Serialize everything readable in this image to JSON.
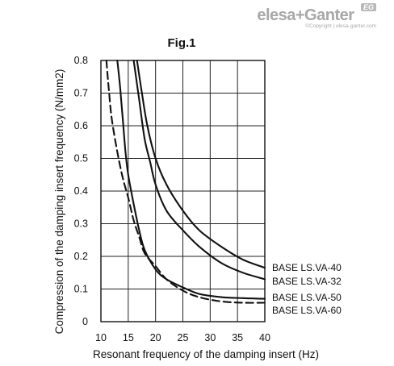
{
  "brand": {
    "name": "elesa+Ganter",
    "mark": "EG",
    "copyright": "©Copyright | elesa-ganter.com"
  },
  "chart_data": {
    "type": "line",
    "title": "Fig.1",
    "xlabel": "Resonant frequency of the damping insert (Hz)",
    "ylabel": "Compression of the damping insert frequency (N/mm2)",
    "xlim": [
      10,
      40
    ],
    "ylim": [
      0,
      0.8
    ],
    "xticks": [
      "10",
      "15",
      "20",
      "25",
      "30",
      "35",
      "40"
    ],
    "yticks": [
      "0",
      "0.1",
      "0.2",
      "0.3",
      "0.4",
      "0.5",
      "0.6",
      "0.7",
      "0.8"
    ],
    "grid": true,
    "legend": "right-of-curves",
    "series": [
      {
        "name": "BASE LS.VA-40",
        "dash": "solid",
        "x": [
          16.6,
          17.5,
          18.5,
          20,
          22,
          25,
          28,
          32,
          36,
          40
        ],
        "y": [
          0.8,
          0.7,
          0.6,
          0.5,
          0.42,
          0.34,
          0.28,
          0.23,
          0.19,
          0.165
        ]
      },
      {
        "name": "BASE LS.VA-32",
        "dash": "solid",
        "x": [
          16,
          17,
          18,
          19,
          20,
          22,
          25,
          28,
          32,
          36,
          40
        ],
        "y": [
          0.8,
          0.68,
          0.56,
          0.49,
          0.42,
          0.34,
          0.28,
          0.23,
          0.18,
          0.15,
          0.13
        ]
      },
      {
        "name": "BASE LS.VA-50",
        "dash": "solid",
        "x": [
          13,
          13.5,
          14,
          14.5,
          15,
          16,
          17,
          18,
          20,
          22,
          25,
          28,
          32,
          36,
          40
        ],
        "y": [
          0.8,
          0.72,
          0.62,
          0.52,
          0.45,
          0.36,
          0.28,
          0.22,
          0.16,
          0.13,
          0.105,
          0.085,
          0.075,
          0.072,
          0.07
        ]
      },
      {
        "name": "BASE LS.VA-60",
        "dash": "dashed",
        "x": [
          11,
          11.5,
          12,
          13,
          14,
          15,
          16,
          17,
          18,
          20,
          22,
          25,
          28,
          32,
          36,
          40
        ],
        "y": [
          0.8,
          0.7,
          0.62,
          0.52,
          0.44,
          0.38,
          0.31,
          0.26,
          0.21,
          0.17,
          0.13,
          0.095,
          0.075,
          0.062,
          0.058,
          0.058
        ]
      }
    ]
  }
}
